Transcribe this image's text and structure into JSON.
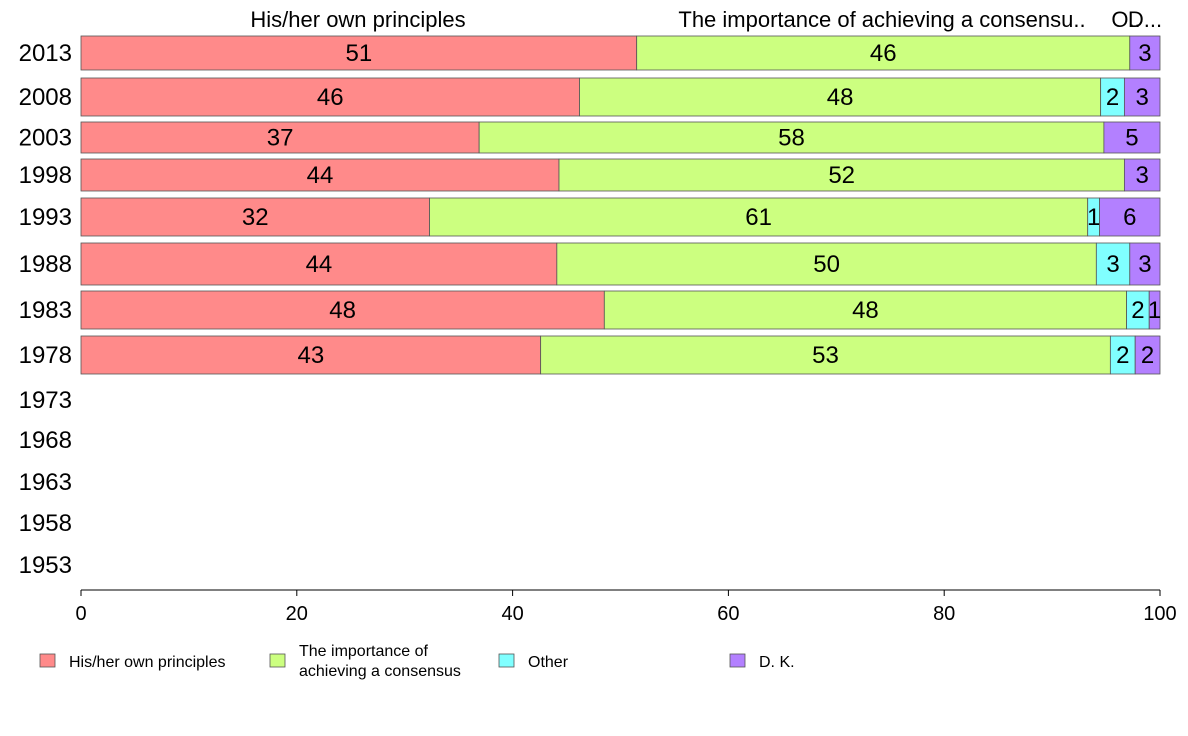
{
  "chart_data": {
    "type": "bar",
    "orientation": "horizontal",
    "stacked": true,
    "title": "",
    "xlabel": "",
    "ylabel": "",
    "xlim": [
      0,
      100
    ],
    "x_ticks": [
      "0",
      "20",
      "40",
      "60",
      "80",
      "100"
    ],
    "grid": false,
    "legend_position": "bottom",
    "categories": [
      "2013",
      "2008",
      "2003",
      "1998",
      "1993",
      "1988",
      "1983",
      "1978",
      "1973",
      "1968",
      "1963",
      "1958",
      "1953"
    ],
    "column_headers": [
      "His/her own principles",
      "The importance of achieving a consensu..",
      "O..",
      "D..."
    ],
    "series": [
      {
        "name": "His/her own principles",
        "legend_lines": [
          "His/her own principles"
        ],
        "color": "#ff8a8a",
        "values": [
          51.5,
          46.2,
          36.9,
          44.3,
          32.3,
          44.1,
          48.5,
          42.6,
          null,
          null,
          null,
          null,
          null
        ],
        "labels": [
          "51",
          "46",
          "37",
          "44",
          "32",
          "44",
          "48",
          "43",
          "",
          "",
          "",
          "",
          ""
        ]
      },
      {
        "name": "The importance of achieving a consensus",
        "legend_lines": [
          "The importance of",
          "achieving a consensus"
        ],
        "color": "#ccff80",
        "values": [
          45.7,
          48.3,
          57.9,
          52.4,
          61.0,
          50.0,
          48.4,
          52.8,
          null,
          null,
          null,
          null,
          null
        ],
        "labels": [
          "46",
          "48",
          "58",
          "52",
          "61",
          "50",
          "48",
          "53",
          "",
          "",
          "",
          "",
          ""
        ]
      },
      {
        "name": "Other",
        "legend_lines": [
          "Other"
        ],
        "color": "#80ffff",
        "values": [
          0,
          2.2,
          0,
          0,
          1.1,
          3.1,
          2.1,
          2.3,
          null,
          null,
          null,
          null,
          null
        ],
        "labels": [
          "",
          "2",
          "",
          "",
          "1",
          "3",
          "2",
          "2",
          "",
          "",
          "",
          "",
          ""
        ]
      },
      {
        "name": "D. K.",
        "legend_lines": [
          "D. K."
        ],
        "color": "#b380ff",
        "values": [
          2.8,
          3.3,
          5.2,
          3.3,
          5.6,
          2.8,
          1.0,
          2.3,
          null,
          null,
          null,
          null,
          null
        ],
        "labels": [
          "3",
          "3",
          "5",
          "3",
          "6",
          "3",
          "1",
          "2",
          "",
          "",
          "",
          "",
          ""
        ]
      }
    ]
  }
}
